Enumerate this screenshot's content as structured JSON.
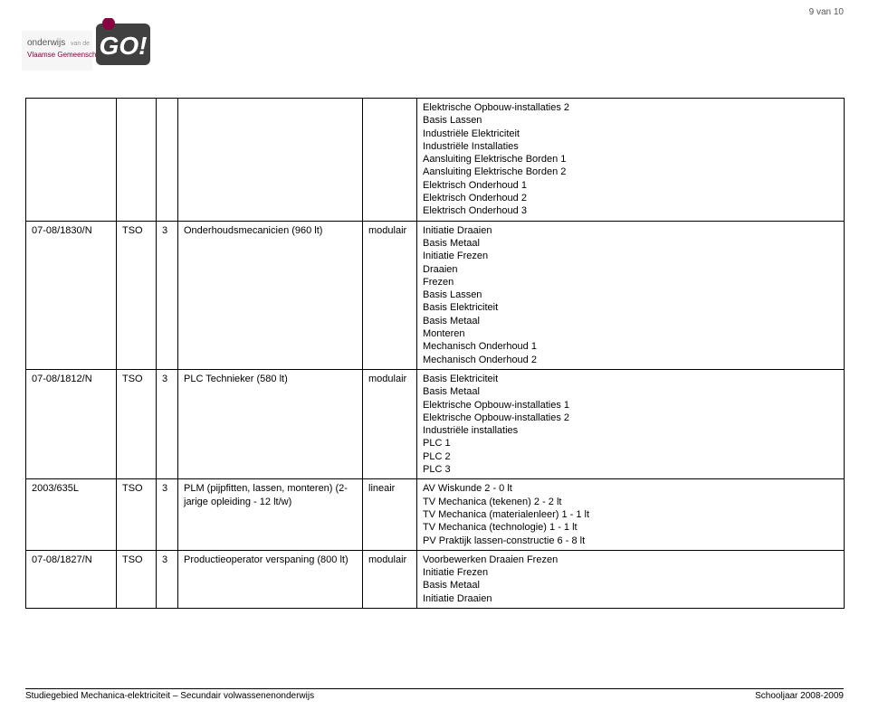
{
  "page_number": "9 van 10",
  "logo": {
    "org_line1": "onderwijs",
    "org_small": "van de",
    "org_line2": "Vlaamse Gemeenschap",
    "mark_text": "GO!",
    "bg_color": "#f6f6f6",
    "accent_color": "#8a0040",
    "mark_bg": "#404040",
    "mark_fg": "#ffffff"
  },
  "colors": {
    "border": "#000000",
    "text": "#000000",
    "page_bg": "#ffffff"
  },
  "rows": [
    {
      "code": "",
      "level": "",
      "num": "",
      "program": "",
      "mode": "",
      "content": [
        "Elektrische Opbouw-installaties 2",
        "Basis Lassen",
        "Industriële Elektriciteit",
        "Industriële Installaties",
        "Aansluiting Elektrische Borden 1",
        "Aansluiting Elektrische Borden 2",
        "Elektrisch Onderhoud 1",
        "Elektrisch Onderhoud 2",
        "Elektrisch Onderhoud 3"
      ]
    },
    {
      "code": "07-08/1830/N",
      "level": "TSO",
      "num": "3",
      "program": "Onderhoudsmecanicien (960 lt)",
      "mode": "modulair",
      "content": [
        "Initiatie Draaien",
        "Basis Metaal",
        "Initiatie Frezen",
        "Draaien",
        "Frezen",
        "Basis Lassen",
        "Basis Elektriciteit",
        "Basis Metaal",
        "Monteren",
        "Mechanisch Onderhoud 1",
        "Mechanisch Onderhoud 2"
      ]
    },
    {
      "code": "07-08/1812/N",
      "level": "TSO",
      "num": "3",
      "program": "PLC Technieker (580 lt)",
      "mode": "modulair",
      "content": [
        "Basis Elektriciteit",
        "Basis Metaal",
        "Elektrische Opbouw-installaties 1",
        "Elektrische Opbouw-installaties 2",
        "Industriële installaties",
        "PLC 1",
        "PLC 2",
        "PLC 3"
      ]
    },
    {
      "code": "2003/635L",
      "level": "TSO",
      "num": "3",
      "program": "PLM (pijpfitten, lassen, monteren) (2-jarige opleiding - 12 lt/w)",
      "mode": "lineair",
      "content": [
        "AV Wiskunde 2 - 0 lt",
        "TV Mechanica (tekenen) 2 - 2 lt",
        "TV Mechanica (materialenleer) 1 - 1 lt",
        "TV Mechanica (technologie) 1 - 1 lt",
        "PV Praktijk lassen-constructie 6 - 8 lt"
      ]
    },
    {
      "code": "07-08/1827/N",
      "level": "TSO",
      "num": "3",
      "program": "Productieoperator verspaning (800 lt)",
      "mode": "modulair",
      "content": [
        "Voorbewerken Draaien Frezen",
        "Initiatie Frezen",
        "Basis Metaal",
        "Initiatie Draaien"
      ]
    }
  ],
  "footer": {
    "left": "Studiegebied Mechanica-elektriciteit – Secundair volwassenenonderwijs",
    "right": "Schooljaar 2008-2009"
  }
}
